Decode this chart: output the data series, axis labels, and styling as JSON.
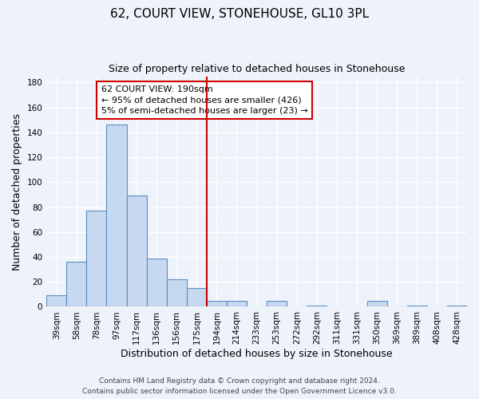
{
  "title": "62, COURT VIEW, STONEHOUSE, GL10 3PL",
  "subtitle": "Size of property relative to detached houses in Stonehouse",
  "xlabel": "Distribution of detached houses by size in Stonehouse",
  "ylabel": "Number of detached properties",
  "bin_labels": [
    "39sqm",
    "58sqm",
    "78sqm",
    "97sqm",
    "117sqm",
    "136sqm",
    "156sqm",
    "175sqm",
    "194sqm",
    "214sqm",
    "233sqm",
    "253sqm",
    "272sqm",
    "292sqm",
    "311sqm",
    "331sqm",
    "350sqm",
    "369sqm",
    "389sqm",
    "408sqm",
    "428sqm"
  ],
  "bar_heights": [
    9,
    36,
    77,
    146,
    89,
    39,
    22,
    15,
    5,
    5,
    0,
    5,
    0,
    1,
    0,
    0,
    5,
    0,
    1,
    0,
    1
  ],
  "bar_color": "#c6d9f0",
  "bar_edge_color": "#5a8fc3",
  "vline_color": "#cc0000",
  "annotation_line1": "62 COURT VIEW: 190sqm",
  "annotation_line2": "← 95% of detached houses are smaller (426)",
  "annotation_line3": "5% of semi-detached houses are larger (23) →",
  "annotation_box_color": "#ffffff",
  "annotation_box_edge": "#cc0000",
  "ylim": [
    0,
    185
  ],
  "yticks": [
    0,
    20,
    40,
    60,
    80,
    100,
    120,
    140,
    160,
    180
  ],
  "footer_line1": "Contains HM Land Registry data © Crown copyright and database right 2024.",
  "footer_line2": "Contains public sector information licensed under the Open Government Licence v3.0.",
  "bg_color": "#eef2fa",
  "grid_color": "#ffffff",
  "title_fontsize": 11,
  "subtitle_fontsize": 9,
  "tick_fontsize": 7.5,
  "label_fontsize": 9,
  "footer_fontsize": 6.5
}
